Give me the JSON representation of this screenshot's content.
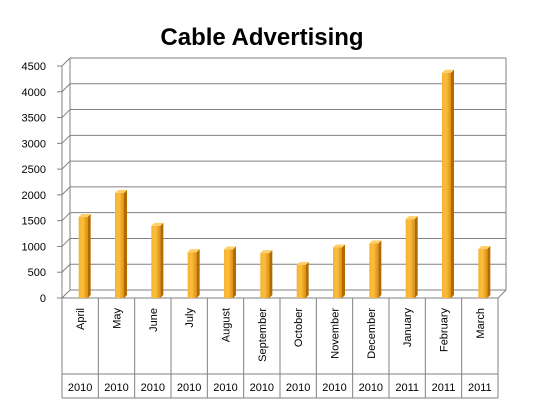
{
  "chart_data": {
    "type": "bar",
    "title": "Cable Advertising",
    "xlabel": "",
    "ylabel": "",
    "ylim": [
      0,
      4500
    ],
    "yticks": [
      0,
      500,
      1000,
      1500,
      2000,
      2500,
      3000,
      3500,
      4000,
      4500
    ],
    "grid": true,
    "legend": "none",
    "bar_color": "#f5a623",
    "categories": [
      "April",
      "May",
      "June",
      "July",
      "August",
      "September",
      "October",
      "November",
      "December",
      "January",
      "February",
      "March"
    ],
    "years": [
      "2010",
      "2010",
      "2010",
      "2010",
      "2010",
      "2010",
      "2010",
      "2010",
      "2010",
      "2011",
      "2011",
      "2011"
    ],
    "values": [
      1570,
      2040,
      1400,
      890,
      940,
      870,
      640,
      980,
      1060,
      1530,
      4370,
      950
    ]
  }
}
